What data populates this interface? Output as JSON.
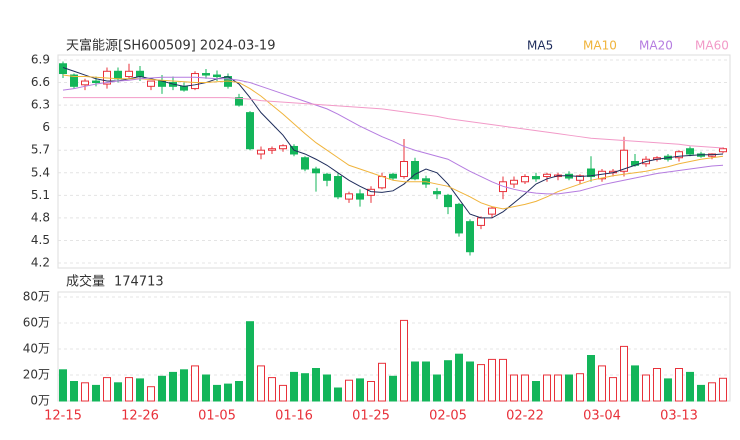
{
  "chart_data": {
    "type": "candlestick",
    "title": "天富能源[SH600509] 2024-03-19",
    "categories": [
      "12-15",
      null,
      null,
      null,
      null,
      null,
      null,
      "12-26",
      null,
      null,
      null,
      null,
      null,
      null,
      "01-05",
      null,
      null,
      null,
      null,
      null,
      null,
      "01-16",
      null,
      null,
      null,
      null,
      null,
      null,
      "01-25",
      null,
      null,
      null,
      null,
      null,
      null,
      "02-05",
      null,
      null,
      null,
      null,
      null,
      null,
      "02-22",
      null,
      null,
      null,
      null,
      null,
      null,
      "03-04",
      null,
      null,
      null,
      null,
      null,
      null,
      "03-13",
      null,
      null,
      null,
      null
    ],
    "open": [
      6.85,
      6.7,
      6.57,
      6.62,
      6.58,
      6.75,
      6.68,
      6.75,
      6.55,
      6.62,
      6.6,
      6.55,
      6.52,
      6.72,
      6.7,
      6.68,
      6.4,
      6.2,
      5.65,
      5.7,
      5.72,
      5.75,
      5.6,
      5.45,
      5.38,
      5.35,
      5.05,
      5.12,
      5.1,
      5.2,
      5.38,
      5.35,
      5.55,
      5.32,
      5.15,
      5.1,
      4.98,
      4.75,
      4.7,
      4.85,
      5.15,
      5.25,
      5.28,
      5.35,
      5.35,
      5.35,
      5.38,
      5.3,
      5.45,
      5.32,
      5.4,
      5.42,
      5.55,
      5.52,
      5.58,
      5.62,
      5.6,
      5.72,
      5.65,
      5.62,
      5.68
    ],
    "high": [
      6.88,
      6.72,
      6.65,
      6.68,
      6.8,
      6.8,
      6.85,
      6.82,
      6.62,
      6.7,
      6.68,
      6.6,
      6.75,
      6.78,
      6.76,
      6.72,
      6.45,
      6.22,
      5.75,
      5.75,
      5.78,
      5.78,
      5.62,
      5.48,
      5.4,
      5.4,
      5.15,
      5.18,
      5.22,
      5.4,
      5.4,
      5.85,
      5.6,
      5.36,
      5.2,
      5.12,
      5.0,
      4.78,
      4.82,
      4.95,
      5.35,
      5.35,
      5.38,
      5.4,
      5.4,
      5.4,
      5.42,
      5.38,
      5.62,
      5.45,
      5.45,
      5.88,
      5.65,
      5.62,
      5.62,
      5.65,
      5.7,
      5.75,
      5.68,
      5.66,
      5.74
    ],
    "low": [
      6.66,
      6.52,
      6.5,
      6.55,
      6.52,
      6.6,
      6.65,
      6.62,
      6.5,
      6.45,
      6.5,
      6.48,
      6.5,
      6.65,
      6.62,
      6.52,
      6.28,
      5.7,
      5.58,
      5.65,
      5.68,
      5.62,
      5.42,
      5.15,
      5.22,
      5.05,
      5.0,
      4.95,
      5.0,
      5.18,
      5.3,
      5.32,
      5.3,
      5.2,
      5.05,
      4.85,
      4.55,
      4.3,
      4.65,
      4.8,
      5.05,
      5.2,
      5.25,
      5.28,
      5.28,
      5.3,
      5.3,
      5.25,
      5.28,
      5.28,
      5.35,
      5.35,
      5.48,
      5.48,
      5.55,
      5.55,
      5.55,
      5.62,
      5.6,
      5.58,
      5.66
    ],
    "close": [
      6.72,
      6.55,
      6.62,
      6.6,
      6.75,
      6.65,
      6.75,
      6.68,
      6.62,
      6.55,
      6.55,
      6.5,
      6.72,
      6.7,
      6.68,
      6.55,
      6.3,
      5.72,
      5.7,
      5.72,
      5.76,
      5.65,
      5.45,
      5.4,
      5.3,
      5.08,
      5.12,
      5.05,
      5.18,
      5.35,
      5.33,
      5.55,
      5.32,
      5.25,
      5.12,
      4.95,
      4.6,
      4.35,
      4.8,
      4.93,
      5.28,
      5.3,
      5.35,
      5.32,
      5.38,
      5.37,
      5.33,
      5.36,
      5.35,
      5.42,
      5.42,
      5.7,
      5.5,
      5.58,
      5.6,
      5.58,
      5.68,
      5.65,
      5.62,
      5.65,
      5.72
    ],
    "up_color": "#e8313a",
    "down_color": "#13b55a",
    "ylim": [
      4.2,
      6.9
    ],
    "yticks": [
      6.9,
      6.6,
      6.3,
      6,
      5.7,
      5.4,
      5.1,
      4.8,
      4.5,
      4.2
    ],
    "ma": [
      {
        "name": "MA5",
        "color": "#1f2d5c",
        "values": [
          6.8,
          6.75,
          6.7,
          6.65,
          6.62,
          6.62,
          6.65,
          6.68,
          6.65,
          6.62,
          6.58,
          6.55,
          6.57,
          6.6,
          6.65,
          6.68,
          6.58,
          6.4,
          6.2,
          6.05,
          5.9,
          5.7,
          5.65,
          5.58,
          5.5,
          5.4,
          5.3,
          5.22,
          5.15,
          5.14,
          5.16,
          5.25,
          5.38,
          5.45,
          5.4,
          5.25,
          5.05,
          4.85,
          4.8,
          4.8,
          4.88,
          5.0,
          5.12,
          5.25,
          5.32,
          5.36,
          5.36,
          5.35,
          5.36,
          5.38,
          5.4,
          5.45,
          5.5,
          5.55,
          5.58,
          5.6,
          5.62,
          5.63,
          5.64,
          5.64,
          5.65
        ]
      },
      {
        "name": "MA10",
        "color": "#f0b43c",
        "values": [
          6.7,
          6.68,
          6.68,
          6.67,
          6.66,
          6.65,
          6.65,
          6.65,
          6.64,
          6.63,
          6.62,
          6.61,
          6.6,
          6.6,
          6.61,
          6.62,
          6.6,
          6.52,
          6.42,
          6.3,
          6.18,
          6.05,
          5.92,
          5.8,
          5.7,
          5.6,
          5.5,
          5.45,
          5.4,
          5.35,
          5.3,
          5.28,
          5.28,
          5.28,
          5.25,
          5.22,
          5.15,
          5.08,
          5.0,
          4.95,
          4.92,
          4.95,
          4.98,
          5.02,
          5.08,
          5.15,
          5.2,
          5.25,
          5.3,
          5.33,
          5.36,
          5.38,
          5.4,
          5.42,
          5.45,
          5.48,
          5.52,
          5.55,
          5.58,
          5.6,
          5.62
        ]
      },
      {
        "name": "MA20",
        "color": "#b57ce0",
        "values": [
          6.5,
          6.52,
          6.55,
          6.58,
          6.6,
          6.62,
          6.63,
          6.65,
          6.66,
          6.67,
          6.67,
          6.67,
          6.67,
          6.66,
          6.65,
          6.65,
          6.63,
          6.6,
          6.55,
          6.5,
          6.45,
          6.4,
          6.35,
          6.3,
          6.25,
          6.18,
          6.1,
          6.02,
          5.95,
          5.88,
          5.82,
          5.75,
          5.7,
          5.66,
          5.62,
          5.58,
          5.5,
          5.42,
          5.35,
          5.28,
          5.22,
          5.18,
          5.15,
          5.13,
          5.12,
          5.12,
          5.14,
          5.16,
          5.2,
          5.24,
          5.27,
          5.3,
          5.33,
          5.36,
          5.39,
          5.41,
          5.43,
          5.45,
          5.47,
          5.49,
          5.5
        ]
      },
      {
        "name": "MA60",
        "color": "#f29ac8",
        "values": [
          6.4,
          6.4,
          6.4,
          6.4,
          6.4,
          6.4,
          6.4,
          6.4,
          6.4,
          6.4,
          6.4,
          6.4,
          6.4,
          6.4,
          6.4,
          6.4,
          6.39,
          6.38,
          6.36,
          6.35,
          6.34,
          6.33,
          6.32,
          6.31,
          6.3,
          6.29,
          6.28,
          6.27,
          6.26,
          6.25,
          6.23,
          6.21,
          6.19,
          6.17,
          6.15,
          6.12,
          6.1,
          6.08,
          6.06,
          6.04,
          6.02,
          6.0,
          5.98,
          5.96,
          5.94,
          5.92,
          5.9,
          5.88,
          5.86,
          5.85,
          5.84,
          5.83,
          5.82,
          5.81,
          5.8,
          5.79,
          5.78,
          5.76,
          5.75,
          5.74,
          5.73
        ]
      }
    ],
    "volume": {
      "title": "成交量",
      "values": [
        240000,
        150000,
        140000,
        120000,
        180000,
        140000,
        180000,
        170000,
        110000,
        190000,
        220000,
        240000,
        270000,
        200000,
        120000,
        130000,
        150000,
        610000,
        270000,
        180000,
        120000,
        220000,
        210000,
        250000,
        200000,
        100000,
        160000,
        170000,
        150000,
        290000,
        190000,
        620000,
        300000,
        300000,
        200000,
        310000,
        360000,
        300000,
        280000,
        320000,
        320000,
        200000,
        200000,
        150000,
        200000,
        200000,
        200000,
        210000,
        350000,
        270000,
        180000,
        420000,
        270000,
        200000,
        250000,
        170000,
        250000,
        220000,
        120000,
        140000,
        174713
      ],
      "ylim": [
        0,
        800000
      ],
      "yticks": [
        {
          "value": 800000,
          "label": "80万"
        },
        {
          "value": 600000,
          "label": "60万"
        },
        {
          "value": 400000,
          "label": "40万"
        },
        {
          "value": 200000,
          "label": "20万"
        },
        {
          "value": 0,
          "label": "0万"
        }
      ]
    }
  }
}
